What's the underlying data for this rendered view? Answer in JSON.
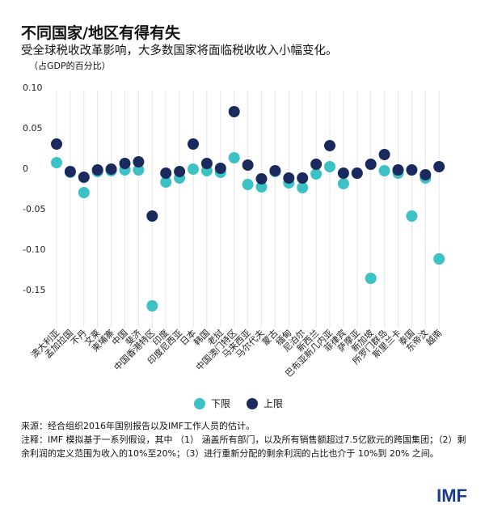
{
  "header": {
    "title": "不同国家/地区有得有失",
    "subtitle": "受全球税收改革影响，大多数国家将面临税收收入小幅变化。",
    "unit": "（占GDP的百分比）"
  },
  "chart_data": {
    "type": "scatter",
    "title": "不同国家/地区有得有失",
    "ylim": [
      -0.15,
      0.1
    ],
    "yticks": [
      0.1,
      0.05,
      0,
      -0.05,
      -0.1,
      -0.15
    ],
    "ytick_labels": [
      "0.10",
      "0.05",
      "0",
      "-0.05",
      "-0.10",
      "-0.15"
    ],
    "grid": "vertical",
    "legend_placement": "bottom",
    "categories": [
      "澳大利亚",
      "孟加拉国",
      "不丹",
      "文莱",
      "柬埔寨",
      "中国",
      "斐济",
      "中国香港特区",
      "印度",
      "印度尼西亚",
      "日本",
      "韩国",
      "老挝",
      "中国澳门特区",
      "马来西亚",
      "马尔代夫",
      "蒙古",
      "缅甸",
      "尼泊尔",
      "新西兰",
      "巴布亚新几内亚",
      "菲律宾",
      "萨摩亚",
      "新加坡",
      "所罗门群岛",
      "斯里兰卡",
      "泰国",
      "东帝汶",
      "越南"
    ],
    "series": [
      {
        "name": "下限",
        "color": "#3cc1c4",
        "values": [
          0.007,
          -0.005,
          -0.03,
          -0.004,
          -0.003,
          -0.002,
          -0.002,
          -0.17,
          -0.017,
          -0.012,
          -0.001,
          -0.003,
          -0.005,
          0.013,
          -0.02,
          -0.023,
          -0.004,
          -0.018,
          -0.024,
          -0.007,
          0.002,
          -0.019,
          -0.006,
          -0.136,
          -0.003,
          -0.006,
          -0.059,
          -0.012,
          -0.112
        ]
      },
      {
        "name": "上限",
        "color": "#1b2a5e",
        "values": [
          0.03,
          -0.004,
          -0.011,
          -0.002,
          -0.001,
          0.006,
          0.008,
          -0.059,
          -0.006,
          -0.004,
          0.03,
          0.006,
          0.0,
          0.07,
          0.004,
          -0.013,
          -0.003,
          -0.012,
          -0.012,
          0.005,
          0.028,
          -0.006,
          -0.006,
          0.005,
          0.017,
          -0.002,
          -0.002,
          -0.008,
          0.002
        ]
      }
    ]
  },
  "footer": {
    "source": "来源：经合组织2016年国别报告以及IMF工作人员的估计。",
    "note": "注释：IMF 模拟基于一系列假设，其中 （1） 涵盖所有部门，以及所有销售额超过7.5亿欧元的跨国集团；（2）剩余利润的定义范围为收入的10%至20%；（3）进行重新分配的剩余利润的占比也介于 10%到 20% 之间。"
  },
  "logo": "IMF"
}
